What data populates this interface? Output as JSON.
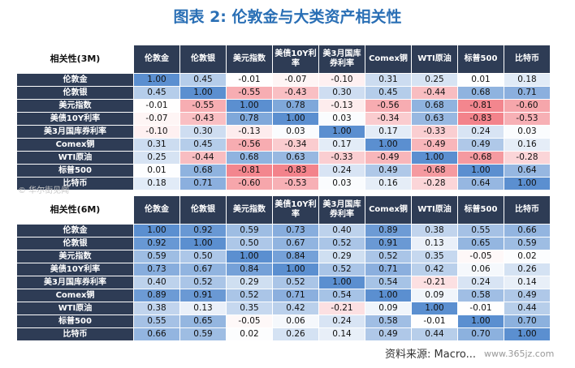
{
  "title": "图表 2:  伦敦金与大类资产相关性",
  "watermark": "© 华尔街见闻",
  "source": "资料来源: Macro...",
  "site": "www.365jz.com",
  "colors": {
    "header_bg": "#2e3c55",
    "header_text": "#ffffff",
    "high": "#5b8fd0",
    "low": "#f06a73",
    "neutral": "#ffffff"
  },
  "chart_data": [
    {
      "type": "heatmap",
      "title": "相关性(3M)",
      "row_labels": [
        "伦敦金",
        "伦敦银",
        "美元指数",
        "美债10Y利率",
        "美3月国库券利率",
        "Comex铜",
        "WTI原油",
        "标普500",
        "比特币"
      ],
      "col_labels": [
        "伦敦金",
        "伦敦银",
        "美元指数",
        "美债10Y利率",
        "美3月国库券利率",
        "Comex铜",
        "WTI原油",
        "标普500",
        "比特币"
      ],
      "values": [
        [
          1.0,
          0.45,
          -0.01,
          -0.07,
          -0.1,
          0.31,
          0.25,
          0.01,
          0.18
        ],
        [
          0.45,
          1.0,
          -0.55,
          -0.43,
          0.3,
          0.45,
          -0.44,
          0.68,
          0.71
        ],
        [
          -0.01,
          -0.55,
          1.0,
          0.78,
          -0.13,
          -0.56,
          0.68,
          -0.81,
          -0.6
        ],
        [
          -0.07,
          -0.43,
          0.78,
          1.0,
          0.03,
          -0.34,
          0.63,
          -0.83,
          -0.53
        ],
        [
          -0.1,
          0.3,
          -0.13,
          0.03,
          1.0,
          0.17,
          -0.33,
          0.24,
          0.03
        ],
        [
          0.31,
          0.45,
          -0.56,
          -0.34,
          0.17,
          1.0,
          -0.49,
          0.49,
          0.16
        ],
        [
          0.25,
          -0.44,
          0.68,
          0.63,
          -0.33,
          -0.49,
          1.0,
          -0.68,
          -0.28
        ],
        [
          0.01,
          0.68,
          -0.81,
          -0.83,
          0.24,
          0.49,
          -0.68,
          1.0,
          0.64
        ],
        [
          0.18,
          0.71,
          -0.6,
          -0.53,
          0.03,
          0.16,
          -0.28,
          0.64,
          1.0
        ]
      ]
    },
    {
      "type": "heatmap",
      "title": "相关性(6M)",
      "row_labels": [
        "伦敦金",
        "伦敦银",
        "美元指数",
        "美债10Y利率",
        "美3月国库券利率",
        "Comex铜",
        "WTI原油",
        "标普500",
        "比特币"
      ],
      "col_labels": [
        "伦敦金",
        "伦敦银",
        "美元指数",
        "美债10Y利率",
        "美3月国库券利率",
        "Comex铜",
        "WTI原油",
        "标普500",
        "比特币"
      ],
      "values": [
        [
          1.0,
          0.92,
          0.59,
          0.73,
          0.4,
          0.89,
          0.38,
          0.55,
          0.66
        ],
        [
          0.92,
          1.0,
          0.5,
          0.67,
          0.52,
          0.91,
          0.13,
          0.65,
          0.59
        ],
        [
          0.59,
          0.5,
          1.0,
          0.84,
          0.29,
          0.52,
          0.35,
          -0.05,
          0.02
        ],
        [
          0.73,
          0.67,
          0.84,
          1.0,
          0.52,
          0.71,
          0.42,
          0.06,
          0.26
        ],
        [
          0.4,
          0.52,
          0.29,
          0.52,
          1.0,
          0.54,
          -0.21,
          0.24,
          0.14
        ],
        [
          0.89,
          0.91,
          0.52,
          0.71,
          0.54,
          1.0,
          0.09,
          0.58,
          0.49
        ],
        [
          0.38,
          0.13,
          0.35,
          0.42,
          -0.21,
          0.09,
          1.0,
          -0.01,
          0.44
        ],
        [
          0.55,
          0.65,
          -0.05,
          0.06,
          0.24,
          0.58,
          -0.01,
          1.0,
          0.7
        ],
        [
          0.66,
          0.59,
          0.02,
          0.26,
          0.14,
          0.49,
          0.44,
          0.7,
          1.0
        ]
      ]
    }
  ]
}
